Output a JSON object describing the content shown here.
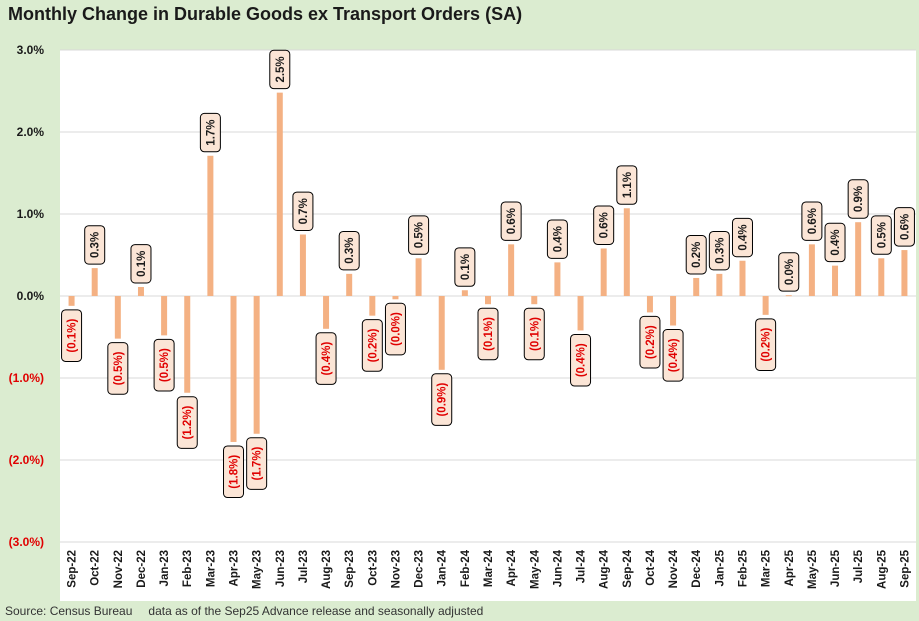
{
  "chart_data": {
    "type": "bar",
    "title": "Monthly Change in Durable Goods ex Transport Orders (SA)",
    "xlabel": "",
    "ylabel": "",
    "ylim": [
      -3.0,
      3.0
    ],
    "y_ticks": [
      3.0,
      2.0,
      1.0,
      0.0,
      -1.0,
      -2.0,
      -3.0
    ],
    "y_tick_labels": [
      "3.0%",
      "2.0%",
      "1.0%",
      "0.0%",
      "(1.0%)",
      "(2.0%)",
      "(3.0%)"
    ],
    "grid": true,
    "categories": [
      "Sep-22",
      "Oct-22",
      "Nov-22",
      "Dec-22",
      "Jan-23",
      "Feb-23",
      "Mar-23",
      "Apr-23",
      "May-23",
      "Jun-23",
      "Jul-23",
      "Aug-23",
      "Sep-23",
      "Oct-23",
      "Nov-23",
      "Dec-23",
      "Jan-24",
      "Feb-24",
      "Mar-24",
      "Apr-24",
      "May-24",
      "Jun-24",
      "Jul-24",
      "Aug-24",
      "Sep-24",
      "Oct-24",
      "Nov-24",
      "Dec-24",
      "Jan-25",
      "Feb-25",
      "Mar-25",
      "Apr-25",
      "May-25",
      "Jun-25",
      "Jul-25",
      "Aug-25",
      "Sep-25"
    ],
    "values": [
      -0.12,
      0.34,
      -0.52,
      0.11,
      -0.48,
      -1.18,
      1.71,
      -1.78,
      -1.68,
      2.48,
      0.75,
      -0.4,
      0.27,
      -0.24,
      -0.04,
      0.46,
      -0.9,
      0.07,
      -0.1,
      0.63,
      -0.1,
      0.41,
      -0.42,
      0.58,
      1.07,
      -0.2,
      -0.36,
      0.22,
      0.27,
      0.43,
      -0.23,
      0.01,
      0.63,
      0.37,
      0.9,
      0.46,
      0.56
    ],
    "data_labels": [
      "(0.1%)",
      "0.3%",
      "(0.5%)",
      "0.1%",
      "(0.5%)",
      "(1.2%)",
      "1.7%",
      "(1.8%)",
      "(1.7%)",
      "2.5%",
      "0.7%",
      "(0.4%)",
      "0.3%",
      "(0.2%)",
      "(0.0%)",
      "0.5%",
      "(0.9%)",
      "0.1%",
      "(0.1%)",
      "0.6%",
      "(0.1%)",
      "0.4%",
      "(0.4%)",
      "0.6%",
      "1.1%",
      "(0.2%)",
      "(0.4%)",
      "0.2%",
      "0.3%",
      "0.4%",
      "(0.2%)",
      "0.0%",
      "0.6%",
      "0.4%",
      "0.9%",
      "0.5%",
      "0.6%"
    ],
    "colors": {
      "bar": "#f4b183",
      "label_bg": "#fbe5d6",
      "negative_text": "#e00000",
      "positive_text": "#1a1a1a",
      "grid": "#d9d9d9",
      "frame": "#dbecd0"
    }
  },
  "footer": {
    "source": "Source: Census Bureau",
    "note": "data as of the Sep25 Advance release and seasonally adjusted"
  }
}
